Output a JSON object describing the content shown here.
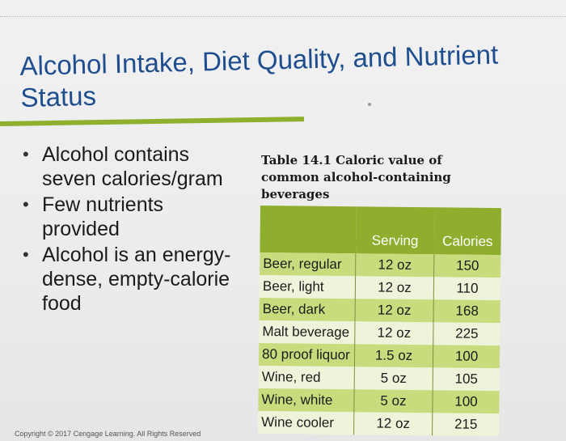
{
  "slide": {
    "title": "Alcohol Intake, Diet Quality, and Nutrient Status",
    "bullets": [
      "Alcohol contains seven calories/gram",
      "Few nutrients provided",
      "Alcohol is an energy-dense, empty-calorie food"
    ],
    "copyright": "Copyright © 2017 Cengage Learning. All Rights Reserved"
  },
  "table": {
    "caption_label": "Table 14.1",
    "caption_text": "Caloric value of common alcohol-containing beverages",
    "headers": [
      "",
      "Serving",
      "Calories"
    ],
    "rows": [
      {
        "name": "Beer, regular",
        "serving": "12 oz",
        "calories": "150"
      },
      {
        "name": "Beer, light",
        "serving": "12 oz",
        "calories": "110"
      },
      {
        "name": "Beer, dark",
        "serving": "12 oz",
        "calories": "168"
      },
      {
        "name": "Malt beverage",
        "serving": "12 oz",
        "calories": "225"
      },
      {
        "name": "80 proof liquor",
        "serving": "1.5 oz",
        "calories": "100"
      },
      {
        "name": "Wine, red",
        "serving": "5 oz",
        "calories": "105"
      },
      {
        "name": "Wine, white",
        "serving": "5 oz",
        "calories": "100"
      },
      {
        "name": "Wine cooler",
        "serving": "12 oz",
        "calories": "215"
      }
    ]
  },
  "colors": {
    "title": "#1f4e8f",
    "accent_green": "#8fae2e",
    "row_dark": "#c9dc7d",
    "row_light": "#eef3da"
  }
}
